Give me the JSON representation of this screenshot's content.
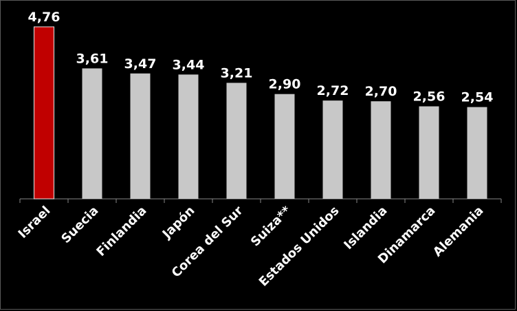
{
  "chart_data": {
    "type": "bar",
    "categories": [
      "Israel",
      "Suecia",
      "Finlandia",
      "Japón",
      "Corea del Sur",
      "Suiza**",
      "Estados Unidos",
      "Islandia",
      "Dinamarca",
      "Alemania"
    ],
    "values": [
      4.76,
      3.61,
      3.47,
      3.44,
      3.21,
      2.9,
      2.72,
      2.7,
      2.56,
      2.54
    ],
    "value_labels": [
      "4,76",
      "3,61",
      "3,47",
      "3,44",
      "3,21",
      "2,90",
      "2,72",
      "2,70",
      "2,56",
      "2,54"
    ],
    "ylim": [
      0,
      4.76
    ],
    "grid": false,
    "legend": "none",
    "colors": {
      "highlight": "#c00000",
      "bar": "#c8c8c8",
      "background": "#000000",
      "text": "#ffffff",
      "axis": "#888888"
    }
  }
}
